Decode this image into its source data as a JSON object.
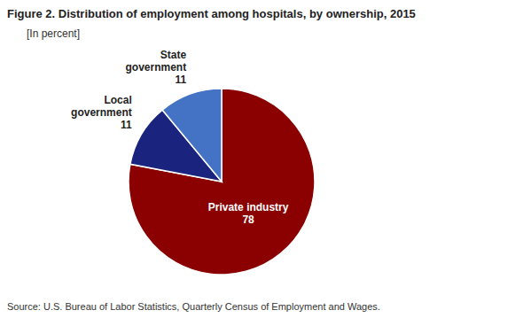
{
  "chart_data": {
    "type": "pie",
    "title": "Figure 2. Distribution of employment among hospitals, by ownership, 2015",
    "subtitle": "[In percent]",
    "source": "Source: U.S. Bureau of Labor Statistics, Quarterly Census of Employment and Wages.",
    "categories": [
      "Private industry",
      "Local\ngovernment",
      "State\ngovernment"
    ],
    "values": [
      78,
      11,
      11
    ],
    "colors": [
      "#8B0000",
      "#1A237E",
      "#4472C4"
    ],
    "data_labels": true
  }
}
